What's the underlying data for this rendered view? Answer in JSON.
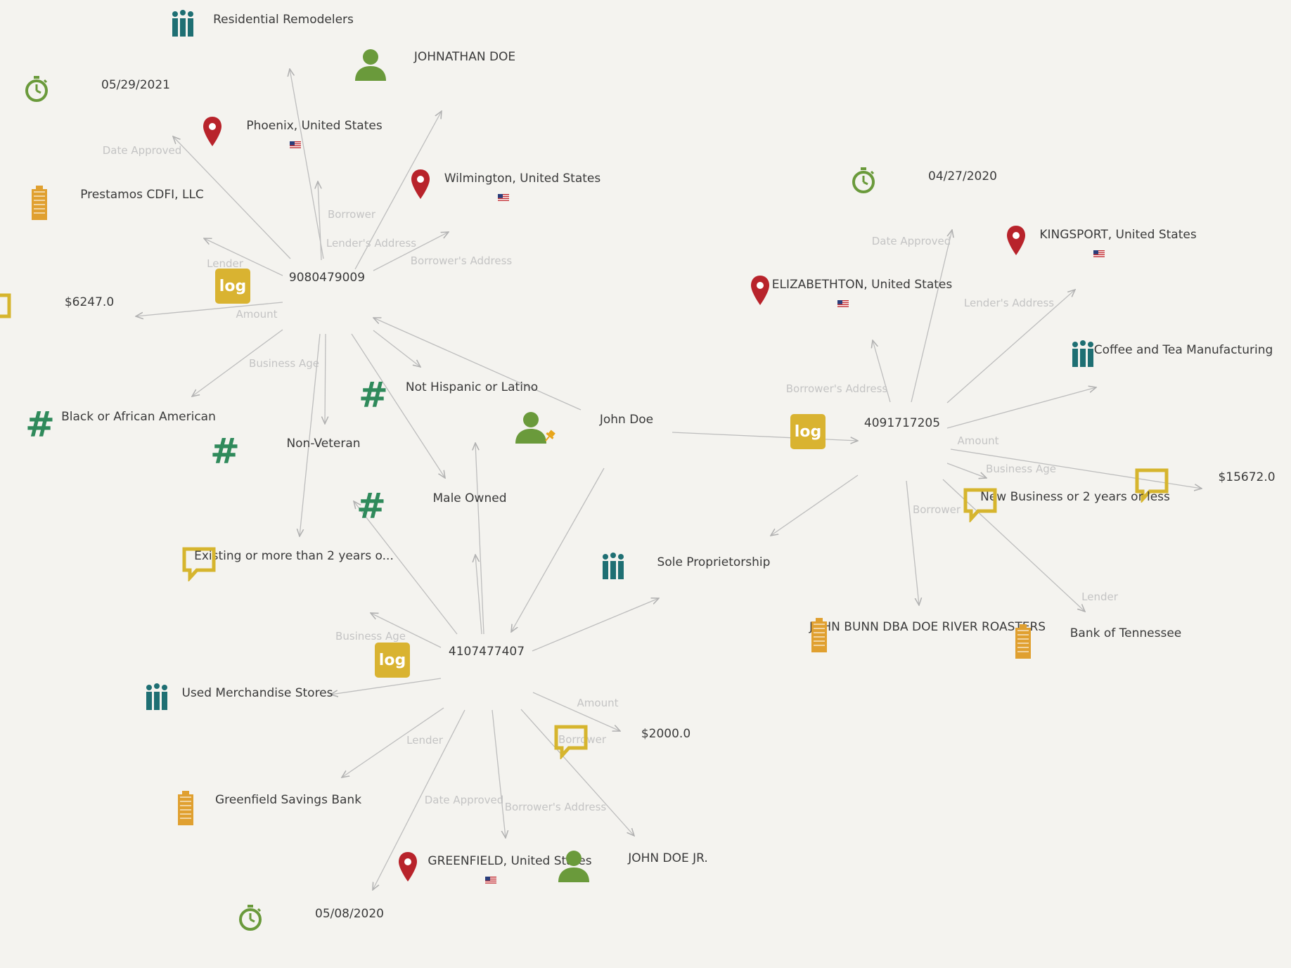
{
  "colors": {
    "log": "#d9b331",
    "person": "#6a9a3b",
    "pin": "#b8232b",
    "timer": "#6a9a3b",
    "industry": "#1e6f73",
    "hash": "#2f8a5b",
    "comment": "#d6b52e",
    "building": "#e0a030",
    "pushpin": "#e8a51a"
  },
  "nodes": [
    {
      "id": "loan1",
      "type": "log",
      "label": "9080479009"
    },
    {
      "id": "loan2",
      "type": "log",
      "label": "4091717205"
    },
    {
      "id": "loan3",
      "type": "log",
      "label": "4107477407"
    },
    {
      "id": "johndoe",
      "type": "person-pinned",
      "label": "John Doe"
    },
    {
      "id": "resrem",
      "type": "industry",
      "label": "Residential Remodelers"
    },
    {
      "id": "johnathan",
      "type": "person",
      "label": "JOHNATHAN DOE"
    },
    {
      "id": "d1",
      "type": "timer",
      "label": "05/29/2021"
    },
    {
      "id": "phoenix",
      "type": "pin",
      "label": "Phoenix, United States"
    },
    {
      "id": "wilm",
      "type": "pin",
      "label": "Wilmington, United States"
    },
    {
      "id": "prestamos",
      "type": "building",
      "label": "Prestamos CDFI, LLC"
    },
    {
      "id": "amt1",
      "type": "comment",
      "label": "$6247.0"
    },
    {
      "id": "black",
      "type": "hash",
      "label": "Black or African American"
    },
    {
      "id": "nonvet",
      "type": "hash",
      "label": "Non-Veteran"
    },
    {
      "id": "nothisp",
      "type": "hash",
      "label": "Not Hispanic or Latino"
    },
    {
      "id": "male",
      "type": "hash",
      "label": "Male Owned"
    },
    {
      "id": "existing",
      "type": "comment",
      "label": "Existing or more than 2 years o..."
    },
    {
      "id": "usedmerch",
      "type": "industry",
      "label": "Used Merchandise Stores"
    },
    {
      "id": "greenbank",
      "type": "building",
      "label": "Greenfield Savings Bank"
    },
    {
      "id": "d3",
      "type": "timer",
      "label": "05/08/2020"
    },
    {
      "id": "greenfield",
      "type": "pin",
      "label": "GREENFIELD, United States"
    },
    {
      "id": "johnjr",
      "type": "person",
      "label": "JOHN DOE JR."
    },
    {
      "id": "amt3",
      "type": "comment",
      "label": "$2000.0"
    },
    {
      "id": "soleprop",
      "type": "industry",
      "label": "Sole Proprietorship"
    },
    {
      "id": "d2",
      "type": "timer",
      "label": "04/27/2020"
    },
    {
      "id": "kingsport",
      "type": "pin",
      "label": "KINGSPORT, United States"
    },
    {
      "id": "eliz",
      "type": "pin",
      "label": "ELIZABETHTON, United States"
    },
    {
      "id": "coffee",
      "type": "industry",
      "label": "Coffee and Tea Manufacturing"
    },
    {
      "id": "amt2",
      "type": "comment",
      "label": "$15672.0"
    },
    {
      "id": "newbiz",
      "type": "comment",
      "label": "New Business or 2 years or less"
    },
    {
      "id": "bunn",
      "type": "building",
      "label": "JOHN BUNN DBA DOE RIVER ROASTERS"
    },
    {
      "id": "boT",
      "type": "building",
      "label": "Bank of Tennessee"
    }
  ],
  "edges": [
    {
      "source": "loan1",
      "target": "resrem",
      "label": ""
    },
    {
      "source": "loan1",
      "target": "johnathan",
      "label": "Borrower"
    },
    {
      "source": "loan1",
      "target": "d1",
      "label": "Date Approved"
    },
    {
      "source": "loan1",
      "target": "phoenix",
      "label": "Lender's Address"
    },
    {
      "source": "loan1",
      "target": "wilm",
      "label": "Borrower's Address"
    },
    {
      "source": "loan1",
      "target": "prestamos",
      "label": "Lender"
    },
    {
      "source": "loan1",
      "target": "amt1",
      "label": "Amount"
    },
    {
      "source": "loan1",
      "target": "black",
      "label": "Business Age"
    },
    {
      "source": "loan1",
      "target": "nonvet",
      "label": ""
    },
    {
      "source": "loan1",
      "target": "nothisp",
      "label": ""
    },
    {
      "source": "loan1",
      "target": "male",
      "label": ""
    },
    {
      "source": "loan1",
      "target": "existing",
      "label": ""
    },
    {
      "source": "johndoe",
      "target": "loan1",
      "label": ""
    },
    {
      "source": "johndoe",
      "target": "loan2",
      "label": ""
    },
    {
      "source": "johndoe",
      "target": "loan3",
      "label": ""
    },
    {
      "source": "loan3",
      "target": "nonvet",
      "label": ""
    },
    {
      "source": "loan3",
      "target": "nothisp",
      "label": ""
    },
    {
      "source": "loan3",
      "target": "male",
      "label": ""
    },
    {
      "source": "loan3",
      "target": "existing",
      "label": "Business Age"
    },
    {
      "source": "loan3",
      "target": "usedmerch",
      "label": ""
    },
    {
      "source": "loan3",
      "target": "greenbank",
      "label": "Lender"
    },
    {
      "source": "loan3",
      "target": "d3",
      "label": "Date Approved"
    },
    {
      "source": "loan3",
      "target": "greenfield",
      "label": "Borrower's Address"
    },
    {
      "source": "loan3",
      "target": "johnjr",
      "label": "Borrower"
    },
    {
      "source": "loan3",
      "target": "amt3",
      "label": "Amount"
    },
    {
      "source": "loan3",
      "target": "soleprop",
      "label": ""
    },
    {
      "source": "loan2",
      "target": "d2",
      "label": "Date Approved"
    },
    {
      "source": "loan2",
      "target": "kingsport",
      "label": "Lender's Address"
    },
    {
      "source": "loan2",
      "target": "eliz",
      "label": "Borrower's Address"
    },
    {
      "source": "loan2",
      "target": "coffee",
      "label": ""
    },
    {
      "source": "loan2",
      "target": "amt2",
      "label": "Amount"
    },
    {
      "source": "loan2",
      "target": "newbiz",
      "label": "Business Age"
    },
    {
      "source": "loan2",
      "target": "bunn",
      "label": "Borrower"
    },
    {
      "source": "loan2",
      "target": "boT",
      "label": "Lender"
    },
    {
      "source": "loan2",
      "target": "soleprop",
      "label": ""
    }
  ]
}
